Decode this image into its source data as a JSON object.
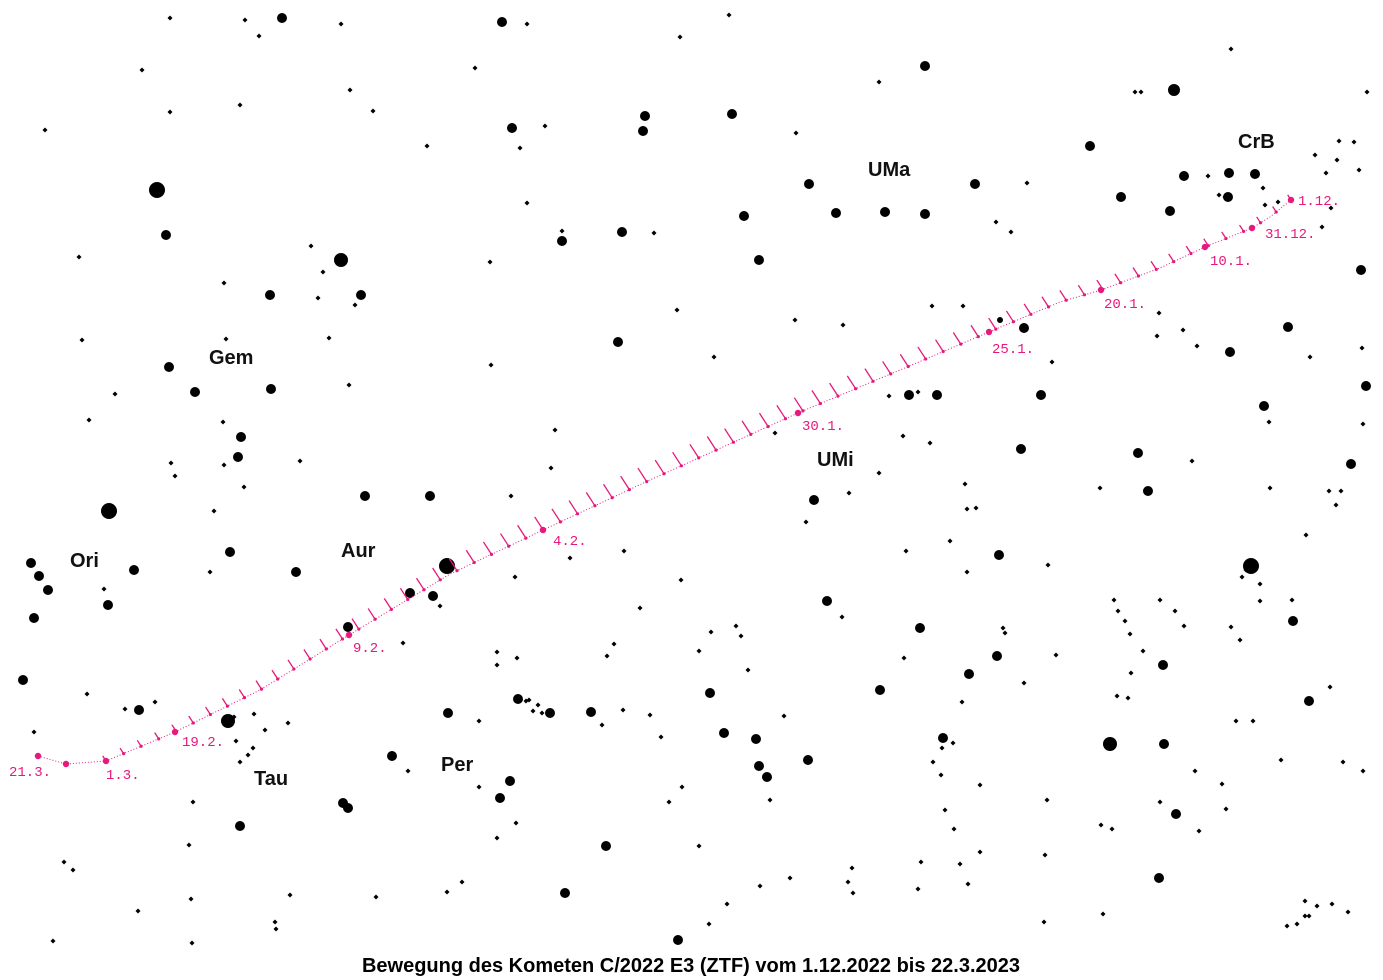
{
  "caption": "Bewegung des Kometen C/2022 E3 (ZTF) vom 1.12.2022 bis 22.3.2023",
  "colors": {
    "background": "#ffffff",
    "star": "#000000",
    "comet": "#e6197d",
    "text": "#111111"
  },
  "constellations": [
    {
      "id": "crb",
      "label": "CrB"
    },
    {
      "id": "uma",
      "label": "UMa"
    },
    {
      "id": "gem",
      "label": "Gem"
    },
    {
      "id": "umi",
      "label": "UMi"
    },
    {
      "id": "ori",
      "label": "Ori"
    },
    {
      "id": "aur",
      "label": "Aur"
    },
    {
      "id": "tau",
      "label": "Tau"
    },
    {
      "id": "per",
      "label": "Per"
    }
  ],
  "date_labels": [
    {
      "id": "d1",
      "label": "1.12."
    },
    {
      "id": "d2",
      "label": "31.12."
    },
    {
      "id": "d3",
      "label": "10.1."
    },
    {
      "id": "d4",
      "label": "20.1."
    },
    {
      "id": "d5",
      "label": "25.1."
    },
    {
      "id": "d6",
      "label": "30.1."
    },
    {
      "id": "d7",
      "label": "4.2."
    },
    {
      "id": "d8",
      "label": "9.2."
    },
    {
      "id": "d9",
      "label": "19.2."
    },
    {
      "id": "d10",
      "label": "1.3."
    },
    {
      "id": "d11",
      "label": "21.3."
    }
  ]
}
